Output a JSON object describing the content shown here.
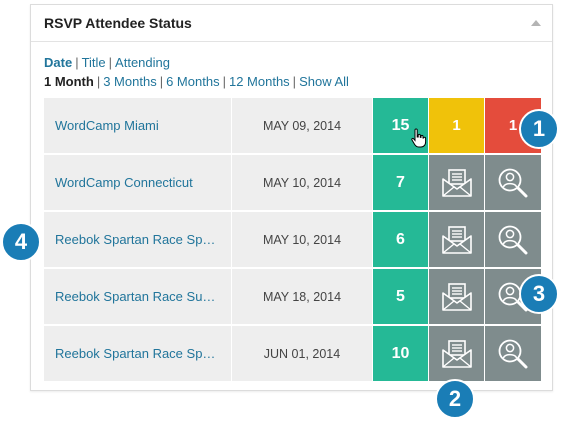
{
  "widget": {
    "title": "RSVP Attendee Status"
  },
  "sort": {
    "items": [
      "Date",
      "Title",
      "Attending"
    ],
    "separator": "|"
  },
  "range": {
    "items": [
      "1 Month",
      "3 Months",
      "6 Months",
      "12 Months",
      "Show All"
    ],
    "separator": "|"
  },
  "rows": [
    {
      "title": "WordCamp Miami",
      "date": "MAY 09, 2014",
      "count": "15",
      "maybe": "1",
      "no": "1"
    },
    {
      "title": "WordCamp Connecticut",
      "date": "MAY 10, 2014",
      "count": "7"
    },
    {
      "title": "Reebok Spartan Race Sp…",
      "date": "MAY 10, 2014",
      "count": "6"
    },
    {
      "title": "Reebok Spartan Race Su…",
      "date": "MAY 18, 2014",
      "count": "5"
    },
    {
      "title": "Reebok Spartan Race Sp…",
      "date": "JUN 01, 2014",
      "count": "10"
    }
  ],
  "icons": {
    "mid": "envelope-icon",
    "right": "magnifier-person-icon"
  },
  "badges": [
    "1",
    "2",
    "3",
    "4"
  ],
  "colors": {
    "accent_blue": "#21759b",
    "badge_blue": "#1a7db6",
    "attending_green": "#25b996",
    "maybe_yellow": "#f0c20a",
    "not_attending_red": "#e44c3c",
    "icon_gray": "#7f8c8d"
  }
}
